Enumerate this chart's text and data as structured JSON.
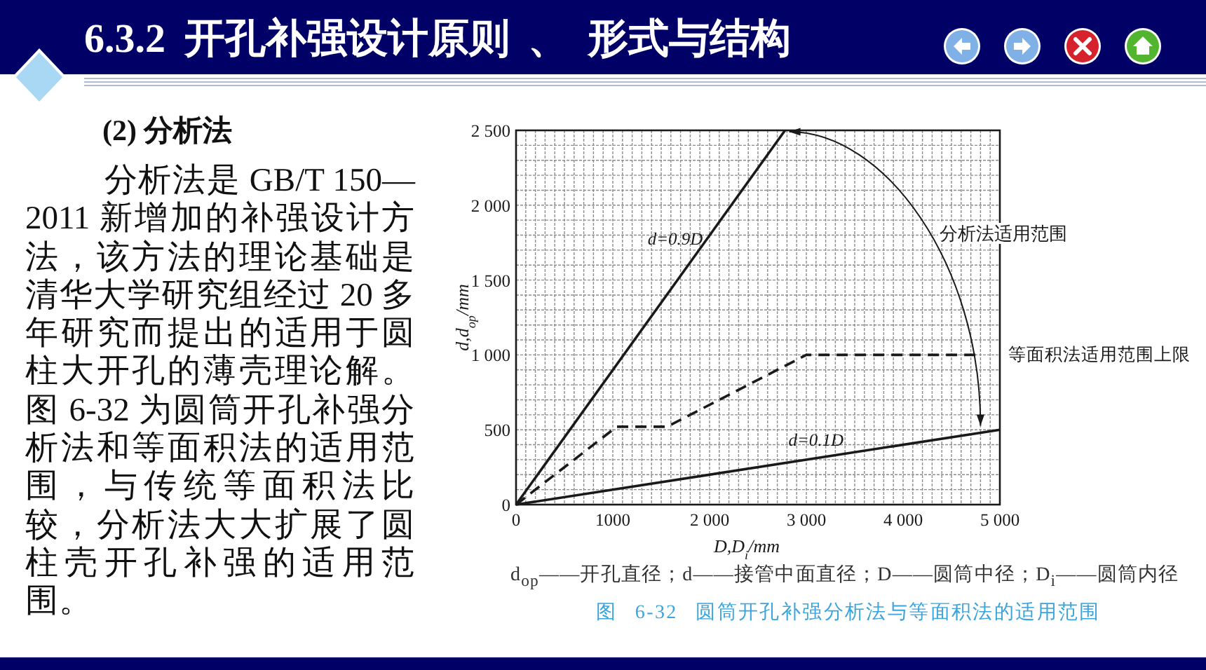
{
  "chart_data": {
    "type": "line",
    "title": "6.3.2 开孔补强设计原则 、 形式与结构",
    "subtitle": "(2) 分析法",
    "xlabel": "D,D$_{i}$/mm",
    "ylabel": "d,d$_{op}$/mm",
    "annotations": [
      "分析法是 GB/T 150—2011 新增加的补强设计方法，该方法的理论基础是清华大学研究组经过 20 多年研究而提出的适用于圆柱大开孔的薄壳理论解。图 6-32 为圆筒开孔补强分析法和等面积法的适用范围，与传统等面积法比较，分析法大大扩展了圆柱壳开孔补强的适用范围。",
      "d$_{op}$——开孔直径；d——接管中面直径；D——圆筒中径；D$_{i}$——圆筒内径",
      "图 6-32 圆筒开孔补强分析法与等面积法的适用范围",
      "分析法适用范围"
    ],
    "series": [
      {
        "name": "d=0.9D",
        "color": "#1a1a1a",
        "x": [
          0,
          2780
        ],
        "values": [
          0,
          2500
        ]
      },
      {
        "name": "d=0.1D",
        "color": "#1a1a1a",
        "x": [
          0,
          5000
        ],
        "values": [
          0,
          500
        ]
      },
      {
        "name": "等面积法适用范围上限",
        "color": "#1a1a1a",
        "line_style": "dashed",
        "x": [
          0,
          1040,
          1560,
          3000,
          4800
        ],
        "values": [
          0,
          520,
          520,
          1000,
          1000
        ]
      }
    ],
    "xlim": [
      0,
      5000
    ],
    "ylim": [
      0,
      2500
    ],
    "xticks": [
      0,
      {
        "value": 100,
        "label": null
      },
      {
        "value": 200,
        "label": null
      },
      {
        "value": 300,
        "label": null
      },
      {
        "value": 400,
        "label": null
      },
      {
        "value": 500,
        "label": null
      },
      {
        "value": 600,
        "label": null
      },
      {
        "value": 700,
        "label": null
      },
      {
        "value": 800,
        "label": null
      },
      {
        "value": 900,
        "label": null
      },
      1000,
      {
        "value": 1100,
        "label": null
      },
      {
        "value": 1200,
        "label": null
      },
      {
        "value": 1300,
        "label": null
      },
      {
        "value": 1400,
        "label": null
      },
      {
        "value": 1500,
        "label": null
      },
      {
        "value": 1600,
        "label": null
      },
      {
        "value": 1700,
        "label": null
      },
      {
        "value": 1800,
        "label": null
      },
      {
        "value": 1900,
        "label": null
      },
      {
        "value": 2000,
        "label": "2 000"
      },
      {
        "value": 2100,
        "label": null
      },
      {
        "value": 2200,
        "label": null
      },
      {
        "value": 2300,
        "label": null
      },
      {
        "value": 2400,
        "label": null
      },
      {
        "value": 2500,
        "label": null
      },
      {
        "value": 2600,
        "label": null
      },
      {
        "value": 2700,
        "label": null
      },
      {
        "value": 2800,
        "label": null
      },
      {
        "value": 2900,
        "label": null
      },
      {
        "value": 3000,
        "label": "3 000"
      },
      {
        "value": 3100,
        "label": null
      },
      {
        "value": 3200,
        "label": null
      },
      {
        "value": 3300,
        "label": null
      },
      {
        "value": 3400,
        "label": null
      },
      {
        "value": 3500,
        "label": null
      },
      {
        "value": 3600,
        "label": null
      },
      {
        "value": 3700,
        "label": null
      },
      {
        "value": 3800,
        "label": null
      },
      {
        "value": 3900,
        "label": null
      },
      {
        "value": 4000,
        "label": "4 000"
      },
      {
        "value": 4100,
        "label": null
      },
      {
        "value": 4200,
        "label": null
      },
      {
        "value": 4300,
        "label": null
      },
      {
        "value": 4400,
        "label": null
      },
      {
        "value": 4500,
        "label": null
      },
      {
        "value": 4600,
        "label": null
      },
      {
        "value": 4700,
        "label": null
      },
      {
        "value": 4800,
        "label": null
      },
      {
        "value": 4900,
        "label": null
      },
      {
        "value": 5000,
        "label": "5 000"
      }
    ],
    "yticks": [
      0,
      {
        "value": 100,
        "label": null
      },
      {
        "value": 200,
        "label": null
      },
      {
        "value": 300,
        "label": null
      },
      {
        "value": 400,
        "label": null
      },
      500,
      {
        "value": 600,
        "label": null
      },
      {
        "value": 700,
        "label": null
      },
      {
        "value": 800,
        "label": null
      },
      {
        "value": 900,
        "label": null
      },
      {
        "value": 1000,
        "label": "1 000"
      },
      {
        "value": 1100,
        "label": null
      },
      {
        "value": 1200,
        "label": null
      },
      {
        "value": 1300,
        "label": null
      },
      {
        "value": 1400,
        "label": null
      },
      {
        "value": 1500,
        "label": "1 500"
      },
      {
        "value": 1600,
        "label": null
      },
      {
        "value": 1700,
        "label": null
      },
      {
        "value": 1800,
        "label": null
      },
      {
        "value": 1900,
        "label": null
      },
      {
        "value": 2000,
        "label": "2 000"
      },
      {
        "value": 2100,
        "label": null
      },
      {
        "value": 2200,
        "label": null
      },
      {
        "value": 2300,
        "label": null
      },
      {
        "value": 2400,
        "label": null
      },
      {
        "value": 2500,
        "label": "2 500"
      }
    ],
    "grid": true,
    "line_style": "solid"
  }
}
